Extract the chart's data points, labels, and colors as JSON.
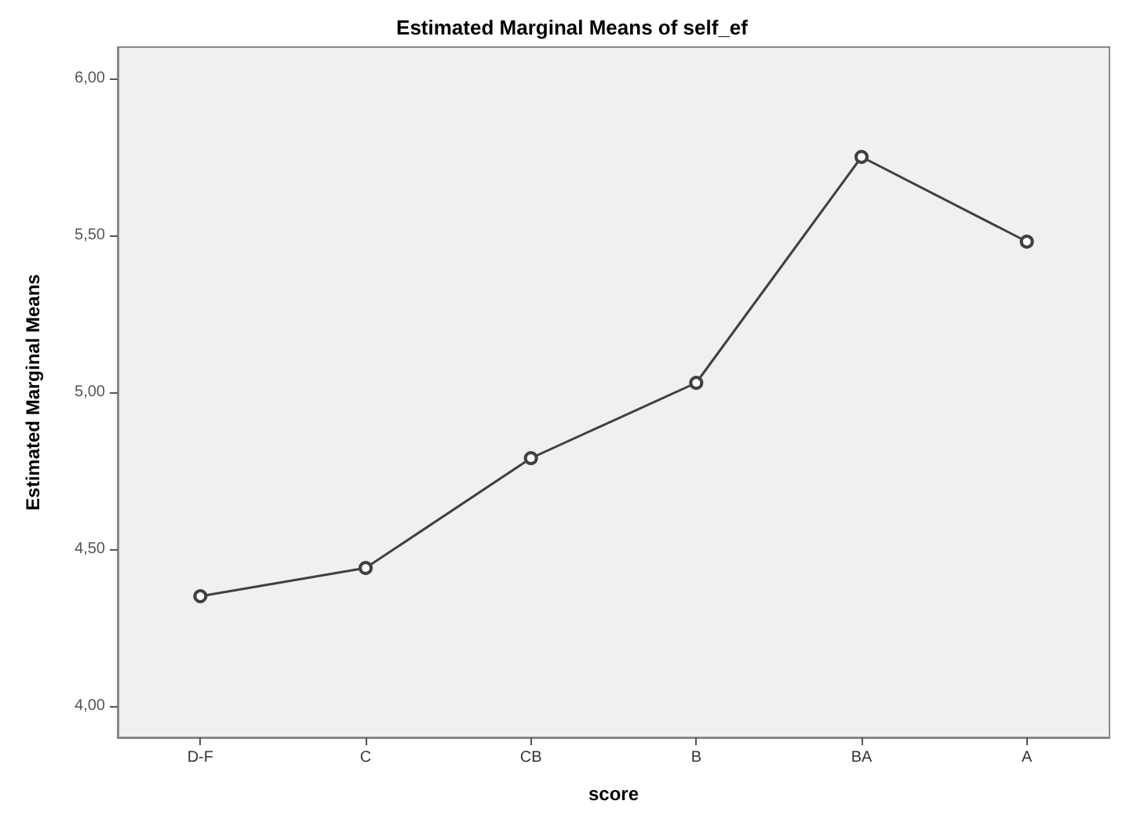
{
  "chart_data": {
    "type": "line",
    "title": "Estimated Marginal Means of self_ef",
    "xlabel": "score",
    "ylabel": "Estimated Marginal Means",
    "categories": [
      "D-F",
      "C",
      "CB",
      "B",
      "BA",
      "A"
    ],
    "series": [
      {
        "color": "#404040",
        "values": [
          4.35,
          4.44,
          4.79,
          5.03,
          5.75,
          5.48
        ]
      }
    ],
    "ylim": [
      3.9,
      6.1
    ],
    "yticks": [
      {
        "value": 4,
        "label": "4,00"
      },
      {
        "value": 4.5,
        "label": "4,50"
      },
      {
        "value": 5,
        "label": "5,00"
      },
      {
        "value": 5.5,
        "label": "5,50"
      },
      {
        "value": 6,
        "label": "6,00"
      }
    ],
    "grid": false,
    "marker": "circle",
    "line_style": "solid"
  }
}
